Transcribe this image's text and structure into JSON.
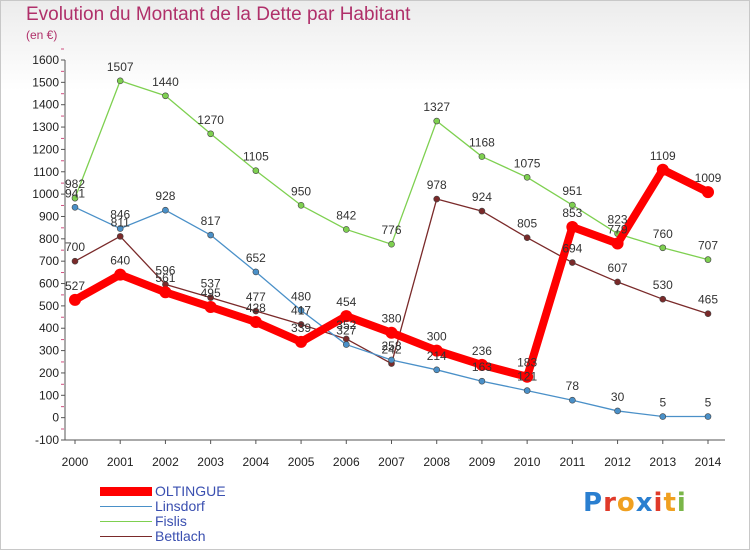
{
  "chart_data": {
    "type": "line",
    "title": "Evolution du Montant de la Dette par Habitant",
    "subtitle": "(en €)",
    "x": [
      2000,
      2001,
      2002,
      2003,
      2004,
      2005,
      2006,
      2007,
      2008,
      2009,
      2010,
      2011,
      2012,
      2013,
      2014
    ],
    "ylim": [
      -100,
      1600
    ],
    "yticks": [
      -100,
      0,
      100,
      200,
      300,
      400,
      500,
      600,
      700,
      800,
      900,
      1000,
      1100,
      1200,
      1300,
      1400,
      1500,
      1600
    ],
    "grid": false,
    "legend_position": "bottom-left",
    "series": [
      {
        "name": "OLTINGUE",
        "color": "#ff0000",
        "values": [
          527,
          640,
          561,
          495,
          428,
          339,
          454,
          380,
          300,
          236,
          183,
          853,
          779,
          1109,
          1009
        ]
      },
      {
        "name": "Linsdorf",
        "color": "#4a90c8",
        "values": [
          941,
          846,
          928,
          817,
          652,
          480,
          327,
          258,
          214,
          163,
          121,
          78,
          30,
          5,
          5
        ]
      },
      {
        "name": "Fislis",
        "color": "#7ed050",
        "values": [
          982,
          1507,
          1440,
          1270,
          1105,
          950,
          842,
          776,
          1327,
          1168,
          1075,
          951,
          823,
          760,
          707
        ]
      },
      {
        "name": "Bettlach",
        "color": "#7a2a2a",
        "values": [
          700,
          811,
          596,
          537,
          477,
          417,
          352,
          242,
          978,
          924,
          805,
          694,
          607,
          530,
          465
        ]
      }
    ]
  },
  "logo": {
    "letters": [
      "P",
      "r",
      "o",
      "x",
      "i",
      "t",
      "i"
    ],
    "colors": [
      "#2a7fd0",
      "#e03a2a",
      "#f0a020",
      "#2a7fd0",
      "#e03a2a",
      "#f0a020",
      "#7ab648"
    ]
  }
}
